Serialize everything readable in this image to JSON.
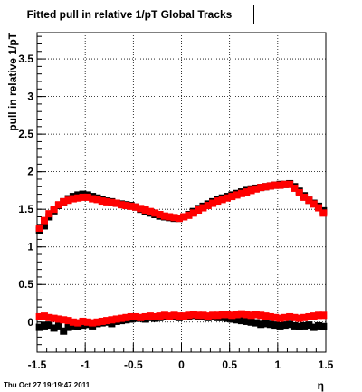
{
  "title": "Fitted pull in relative 1/pT  Global Tracks",
  "timestamp": "Thu Oct 27 19:19:47 2011",
  "chart_data": {
    "type": "scatter",
    "xlabel": "η",
    "ylabel": "pull in relative 1/pT",
    "xlim": [
      -1.5,
      1.5
    ],
    "ylim": [
      -0.4,
      3.85
    ],
    "x_ticks": [
      -1.5,
      -1,
      -0.5,
      0,
      0.5,
      1,
      1.5
    ],
    "x_tick_labels": [
      "-1.5",
      "-1",
      "-0.5",
      "0",
      "0.5",
      "1",
      "1.5"
    ],
    "y_ticks": [
      0,
      0.5,
      1,
      1.5,
      2,
      2.5,
      3,
      3.5
    ],
    "y_tick_labels": [
      "0",
      "0.5",
      "1",
      "1.5",
      "2",
      "2.5",
      "3",
      "3.5"
    ],
    "grid": true,
    "series": [
      {
        "color": "#000000",
        "x": [
          -1.475,
          -1.425,
          -1.375,
          -1.325,
          -1.275,
          -1.225,
          -1.175,
          -1.125,
          -1.075,
          -1.025,
          -0.975,
          -0.925,
          -0.875,
          -0.825,
          -0.775,
          -0.725,
          -0.675,
          -0.625,
          -0.575,
          -0.525,
          -0.475,
          -0.425,
          -0.375,
          -0.325,
          -0.275,
          -0.225,
          -0.175,
          -0.125,
          -0.075,
          -0.025,
          0.025,
          0.075,
          0.125,
          0.175,
          0.225,
          0.275,
          0.325,
          0.375,
          0.425,
          0.475,
          0.525,
          0.575,
          0.625,
          0.675,
          0.725,
          0.775,
          0.825,
          0.875,
          0.925,
          0.975,
          1.025,
          1.075,
          1.125,
          1.175,
          1.225,
          1.275,
          1.325,
          1.375,
          1.425,
          1.475
        ],
        "y": [
          1.22,
          1.28,
          1.4,
          1.48,
          1.55,
          1.6,
          1.64,
          1.67,
          1.69,
          1.7,
          1.69,
          1.67,
          1.65,
          1.63,
          1.61,
          1.6,
          1.58,
          1.57,
          1.56,
          1.55,
          1.53,
          1.5,
          1.47,
          1.45,
          1.43,
          1.41,
          1.4,
          1.39,
          1.38,
          1.38,
          1.4,
          1.43,
          1.47,
          1.51,
          1.54,
          1.57,
          1.6,
          1.63,
          1.65,
          1.67,
          1.69,
          1.71,
          1.73,
          1.75,
          1.77,
          1.78,
          1.79,
          1.8,
          1.81,
          1.82,
          1.83,
          1.83,
          1.84,
          1.8,
          1.74,
          1.68,
          1.62,
          1.58,
          1.54,
          1.48
        ]
      },
      {
        "color": "#ff0000",
        "x": [
          -1.475,
          -1.425,
          -1.375,
          -1.325,
          -1.275,
          -1.225,
          -1.175,
          -1.125,
          -1.075,
          -1.025,
          -0.975,
          -0.925,
          -0.875,
          -0.825,
          -0.775,
          -0.725,
          -0.675,
          -0.625,
          -0.575,
          -0.525,
          -0.475,
          -0.425,
          -0.375,
          -0.325,
          -0.275,
          -0.225,
          -0.175,
          -0.125,
          -0.075,
          -0.025,
          0.025,
          0.075,
          0.125,
          0.175,
          0.225,
          0.275,
          0.325,
          0.375,
          0.425,
          0.475,
          0.525,
          0.575,
          0.625,
          0.675,
          0.725,
          0.775,
          0.825,
          0.875,
          0.925,
          0.975,
          1.025,
          1.075,
          1.125,
          1.175,
          1.225,
          1.275,
          1.325,
          1.375,
          1.425,
          1.475
        ],
        "y": [
          1.25,
          1.35,
          1.44,
          1.5,
          1.56,
          1.6,
          1.62,
          1.64,
          1.65,
          1.66,
          1.66,
          1.64,
          1.63,
          1.61,
          1.6,
          1.59,
          1.58,
          1.56,
          1.55,
          1.54,
          1.53,
          1.51,
          1.49,
          1.47,
          1.45,
          1.43,
          1.41,
          1.4,
          1.39,
          1.38,
          1.4,
          1.42,
          1.45,
          1.49,
          1.52,
          1.55,
          1.58,
          1.61,
          1.63,
          1.65,
          1.67,
          1.69,
          1.71,
          1.73,
          1.75,
          1.77,
          1.79,
          1.8,
          1.81,
          1.82,
          1.82,
          1.83,
          1.83,
          1.78,
          1.72,
          1.66,
          1.62,
          1.57,
          1.52,
          1.45
        ]
      },
      {
        "color": "#000000",
        "x": [
          -1.475,
          -1.425,
          -1.375,
          -1.325,
          -1.275,
          -1.225,
          -1.175,
          -1.125,
          -1.075,
          -1.025,
          -0.975,
          -0.925,
          -0.875,
          -0.825,
          -0.775,
          -0.725,
          -0.675,
          -0.625,
          -0.575,
          -0.525,
          -0.475,
          -0.425,
          -0.375,
          -0.325,
          -0.275,
          -0.225,
          -0.175,
          -0.125,
          -0.075,
          -0.025,
          0.025,
          0.075,
          0.125,
          0.175,
          0.225,
          0.275,
          0.325,
          0.375,
          0.425,
          0.475,
          0.525,
          0.575,
          0.625,
          0.675,
          0.725,
          0.775,
          0.825,
          0.875,
          0.925,
          0.975,
          1.025,
          1.075,
          1.125,
          1.175,
          1.225,
          1.275,
          1.325,
          1.375,
          1.425,
          1.475
        ],
        "y": [
          -0.07,
          -0.05,
          -0.04,
          -0.08,
          -0.05,
          -0.12,
          -0.07,
          -0.05,
          -0.06,
          -0.04,
          -0.03,
          -0.05,
          -0.02,
          -0.01,
          0.0,
          -0.02,
          0.01,
          0.02,
          0.03,
          0.04,
          0.05,
          0.05,
          0.04,
          0.06,
          0.05,
          0.06,
          0.07,
          0.07,
          0.08,
          0.06,
          0.07,
          0.08,
          0.09,
          0.08,
          0.07,
          0.06,
          0.07,
          0.06,
          0.06,
          0.05,
          0.04,
          0.03,
          0.02,
          0.01,
          0.0,
          -0.01,
          -0.03,
          -0.02,
          -0.03,
          -0.04,
          -0.05,
          -0.04,
          -0.03,
          -0.05,
          -0.06,
          -0.05,
          -0.04,
          -0.07,
          -0.05,
          -0.06
        ]
      },
      {
        "color": "#ff0000",
        "x": [
          -1.475,
          -1.425,
          -1.375,
          -1.325,
          -1.275,
          -1.225,
          -1.175,
          -1.125,
          -1.075,
          -1.025,
          -0.975,
          -0.925,
          -0.875,
          -0.825,
          -0.775,
          -0.725,
          -0.675,
          -0.625,
          -0.575,
          -0.525,
          -0.475,
          -0.425,
          -0.375,
          -0.325,
          -0.275,
          -0.225,
          -0.175,
          -0.125,
          -0.075,
          -0.025,
          0.025,
          0.075,
          0.125,
          0.175,
          0.225,
          0.275,
          0.325,
          0.375,
          0.425,
          0.475,
          0.525,
          0.575,
          0.625,
          0.675,
          0.725,
          0.775,
          0.825,
          0.875,
          0.925,
          0.975,
          1.025,
          1.075,
          1.125,
          1.175,
          1.225,
          1.275,
          1.325,
          1.375,
          1.425,
          1.475
        ],
        "y": [
          0.07,
          0.08,
          0.06,
          0.05,
          0.04,
          0.03,
          0.02,
          0.0,
          -0.01,
          0.01,
          0.0,
          -0.01,
          0.0,
          0.01,
          0.02,
          0.03,
          0.04,
          0.05,
          0.06,
          0.07,
          0.07,
          0.06,
          0.07,
          0.08,
          0.07,
          0.08,
          0.09,
          0.08,
          0.09,
          0.08,
          0.08,
          0.09,
          0.1,
          0.09,
          0.09,
          0.08,
          0.09,
          0.09,
          0.1,
          0.1,
          0.09,
          0.1,
          0.11,
          0.1,
          0.09,
          0.1,
          0.09,
          0.08,
          0.07,
          0.06,
          0.05,
          0.06,
          0.07,
          0.06,
          0.05,
          0.06,
          0.07,
          0.08,
          0.09,
          0.09
        ]
      }
    ]
  }
}
